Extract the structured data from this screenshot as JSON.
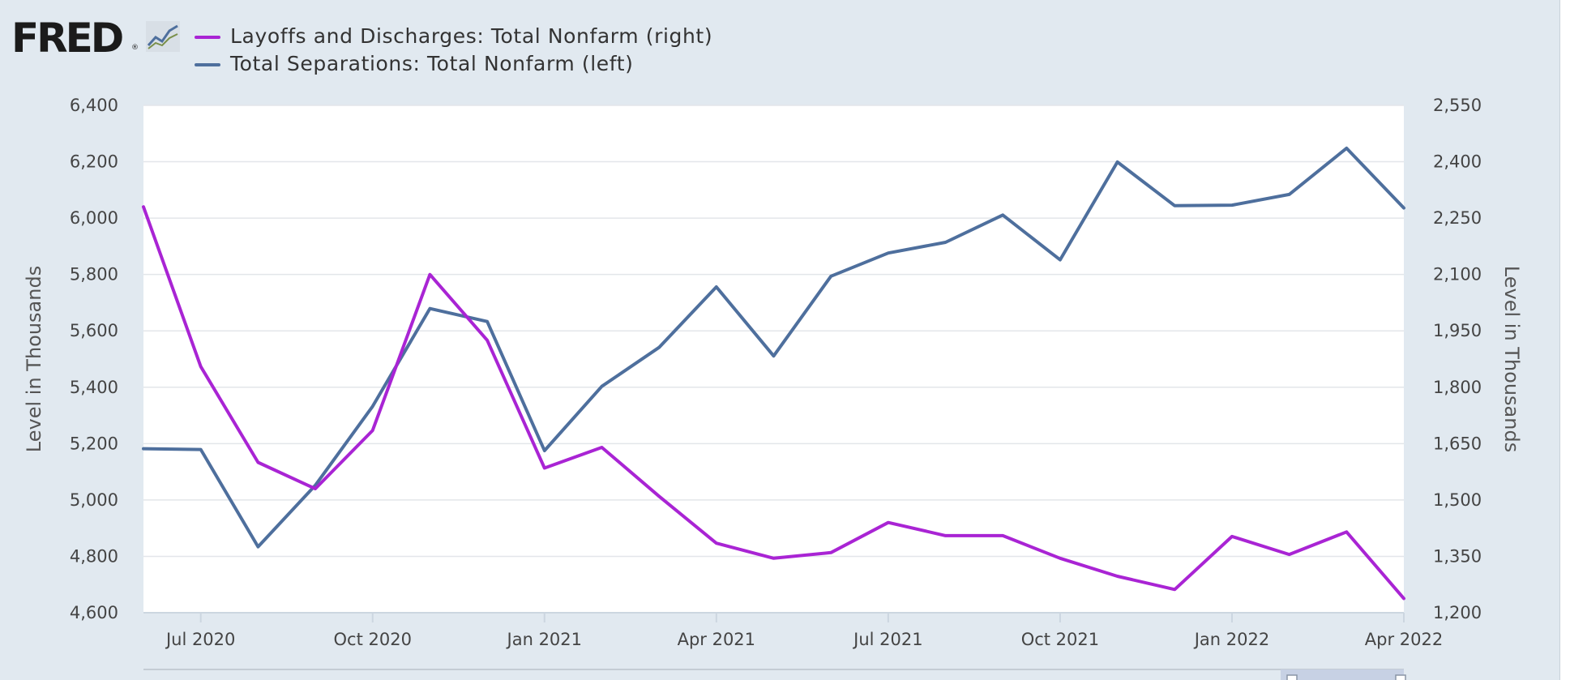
{
  "logo": {
    "text": "FRED",
    "reg": "®"
  },
  "legend": [
    {
      "label": "Layoffs and Discharges: Total Nonfarm (right)",
      "color": "#a924d4"
    },
    {
      "label": "Total Separations: Total Nonfarm (left)",
      "color": "#4e6f9d"
    }
  ],
  "chart_data": {
    "type": "line",
    "x": [
      "2020-06",
      "2020-07",
      "2020-08",
      "2020-09",
      "2020-10",
      "2020-11",
      "2020-12",
      "2021-01",
      "2021-02",
      "2021-03",
      "2021-04",
      "2021-05",
      "2021-06",
      "2021-07",
      "2021-08",
      "2021-09",
      "2021-10",
      "2021-11",
      "2021-12",
      "2022-01",
      "2022-02",
      "2022-03",
      "2022-04"
    ],
    "xtick_labels": [
      "Jul 2020",
      "Oct 2020",
      "Jan 2021",
      "Apr 2021",
      "Jul 2021",
      "Oct 2021",
      "Jan 2022",
      "Apr 2022"
    ],
    "xtick_dates": [
      "2020-07",
      "2020-10",
      "2021-01",
      "2021-04",
      "2021-07",
      "2021-10",
      "2022-01",
      "2022-04"
    ],
    "left_axis": {
      "label": "Level in Thousands",
      "ylim": [
        4600,
        6400
      ],
      "ticks": [
        4600,
        4800,
        5000,
        5200,
        5400,
        5600,
        5800,
        6000,
        6200,
        6400
      ],
      "tick_labels": [
        "4,600",
        "4,800",
        "5,000",
        "5,200",
        "5,400",
        "5,600",
        "5,800",
        "6,000",
        "6,200",
        "6,400"
      ]
    },
    "right_axis": {
      "label": "Level in Thousands",
      "ylim": [
        1200,
        2550
      ],
      "ticks": [
        1200,
        1350,
        1500,
        1650,
        1800,
        1950,
        2100,
        2250,
        2400,
        2550
      ],
      "tick_labels": [
        "1,200",
        "1,350",
        "1,500",
        "1,650",
        "1,800",
        "1,950",
        "2,100",
        "2,250",
        "2,400",
        "2,550"
      ]
    },
    "series": [
      {
        "name": "Total Separations: Total Nonfarm (left)",
        "axis": "left",
        "color": "#4e6f9d",
        "values": [
          5182,
          5179,
          4834,
          5052,
          5332,
          5679,
          5633,
          5175,
          5403,
          5541,
          5756,
          5511,
          5794,
          5876,
          5914,
          6011,
          5852,
          6199,
          6044,
          6046,
          6084,
          6248,
          6036
        ]
      },
      {
        "name": "Layoffs and Discharges: Total Nonfarm (right)",
        "axis": "right",
        "color": "#a924d4",
        "values": [
          2280,
          1855,
          1600,
          1530,
          1685,
          2100,
          1925,
          1585,
          1640,
          1510,
          1385,
          1345,
          1360,
          1440,
          1405,
          1405,
          1345,
          1297,
          1262,
          1403,
          1355,
          1415,
          1238
        ]
      }
    ],
    "grid": true
  }
}
